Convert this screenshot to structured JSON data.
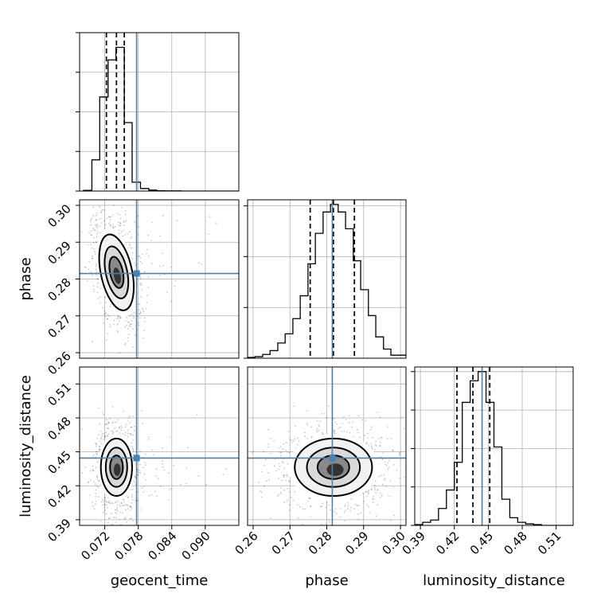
{
  "chart_data": {
    "type": "corner",
    "parameters": [
      "geocent_time",
      "phase",
      "luminosity_distance"
    ],
    "axis_labels": {
      "x": [
        "geocent_time",
        "phase",
        "luminosity_distance"
      ],
      "y": [
        "",
        "phase",
        "luminosity_distance"
      ]
    },
    "ranges": [
      [
        0.0675,
        0.096
      ],
      [
        0.2585,
        0.3015
      ],
      [
        0.385,
        0.525
      ]
    ],
    "ticks": {
      "geocent_time": {
        "values": [
          0.072,
          0.078,
          0.084,
          0.09
        ],
        "labels": [
          "0.072",
          "0.078",
          "0.084",
          "0.090"
        ]
      },
      "phase": {
        "values": [
          0.26,
          0.27,
          0.28,
          0.29,
          0.3
        ],
        "labels": [
          "0.26",
          "0.27",
          "0.28",
          "0.29",
          "0.30"
        ]
      },
      "luminosity_distance": {
        "values": [
          0.39,
          0.42,
          0.45,
          0.48,
          0.51
        ],
        "labels": [
          "0.39",
          "0.42",
          "0.45",
          "0.48",
          "0.51"
        ]
      }
    },
    "truths": [
      0.0777,
      0.2815,
      0.4445
    ],
    "quantiles": [
      [
        0.0723,
        0.0741,
        0.0755
      ],
      [
        0.2755,
        0.2818,
        0.2875
      ],
      [
        0.4223,
        0.4364,
        0.4513
      ]
    ],
    "histograms": [
      {
        "bin_edges": [
          0.0682,
          0.0697,
          0.0711,
          0.0726,
          0.074,
          0.0755,
          0.0769,
          0.0784,
          0.0799,
          0.0813,
          0.0828,
          0.0842,
          0.0857,
          0.0871,
          0.0886,
          0.0901,
          0.0915,
          0.093,
          0.0944,
          0.0959
        ],
        "counts": [
          0.4,
          19.7,
          59.4,
          82.8,
          90.7,
          43.2,
          5.6,
          1.6,
          0.6,
          0.2,
          0.1,
          0.1,
          0,
          0,
          0,
          0,
          0,
          0,
          0
        ],
        "y_ticks": [
          0,
          25,
          50,
          75,
          100
        ],
        "ymax": 100
      },
      {
        "bin_edges": [
          0.2585,
          0.2605,
          0.2626,
          0.2646,
          0.2667,
          0.2687,
          0.2708,
          0.2728,
          0.2749,
          0.2769,
          0.279,
          0.281,
          0.2831,
          0.2851,
          0.2872,
          0.2892,
          0.2913,
          0.2933,
          0.2954,
          0.2974,
          0.2995,
          0.3015
        ],
        "counts": [
          0.5,
          1.0,
          2.5,
          5.0,
          10.0,
          16.0,
          26.0,
          41.0,
          62.0,
          82.0,
          96.0,
          101.0,
          96.0,
          85.0,
          64.0,
          45.0,
          28.0,
          14.0,
          6.0,
          2.0,
          2.0
        ],
        "y_ticks": [
          0,
          33.3,
          66.7,
          100
        ],
        "ymax": 104
      },
      {
        "bin_edges": [
          0.385,
          0.392,
          0.399,
          0.406,
          0.413,
          0.42,
          0.427,
          0.434,
          0.441,
          0.448,
          0.455,
          0.462,
          0.469,
          0.476,
          0.483,
          0.49,
          0.497,
          0.504,
          0.511,
          0.518,
          0.525
        ],
        "counts": [
          0.5,
          2.0,
          3.5,
          11.0,
          23.0,
          41.0,
          80.0,
          94.0,
          100.0,
          80.0,
          51.0,
          17.0,
          5.0,
          2.0,
          1.0,
          0.5,
          0,
          0,
          0,
          0
        ],
        "y_ticks": [
          0,
          25,
          50,
          75,
          100
        ],
        "ymax": 103
      }
    ],
    "contour_fills": [
      "#d9d9d9",
      "#b3b3b3",
      "#8a8a8a",
      "#5f5f5f",
      "#333333"
    ],
    "truth_color": "#4682b4",
    "line_color": "#000000",
    "grid": true
  }
}
